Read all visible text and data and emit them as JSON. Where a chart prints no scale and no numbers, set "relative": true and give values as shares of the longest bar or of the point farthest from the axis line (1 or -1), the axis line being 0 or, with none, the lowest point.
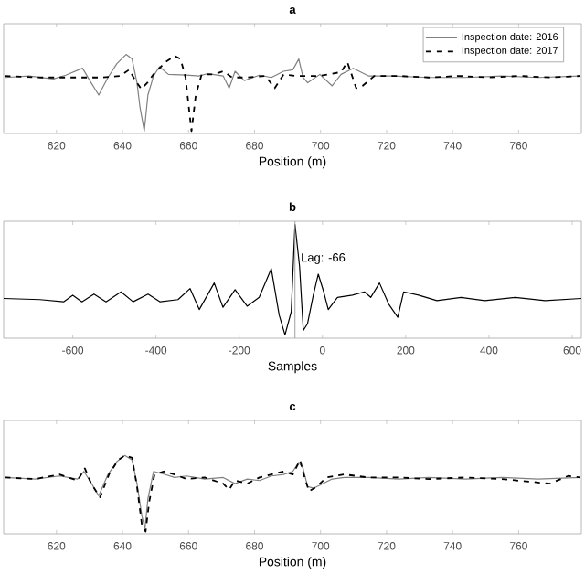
{
  "chart_data": [
    {
      "type": "line",
      "title": "a",
      "xlabel": "Position (m)",
      "relative": true,
      "legend": "top right",
      "xlim": [
        604,
        779
      ],
      "xticks": [
        620,
        640,
        660,
        680,
        700,
        720,
        740,
        760
      ],
      "series": [
        {
          "name": "Inspection date: 2016",
          "color": "#808080",
          "line_style": "solid",
          "x": [
            604.4,
            611.7,
            619.1,
            622.8,
            627.9,
            630.1,
            632.8,
            635.6,
            638.3,
            641.1,
            642.9,
            644.4,
            645.3,
            646.6,
            647.7,
            649.4,
            651.2,
            653.9,
            659.4,
            663.1,
            665.9,
            670.5,
            672.3,
            674.1,
            676.9,
            681.5,
            685.1,
            688.8,
            691.6,
            693.4,
            694.7,
            696.1,
            699.8,
            703.5,
            706.2,
            709.9,
            714.5,
            721.8,
            732.8,
            743.9,
            754.9,
            765.9,
            778.7
          ],
          "values": [
            0.7,
            0.72,
            0.68,
            0.73,
            0.82,
            0.66,
            0.47,
            0.7,
            0.88,
            1.0,
            0.94,
            0.63,
            0.31,
            0.0,
            0.47,
            0.72,
            0.84,
            0.74,
            0.73,
            0.72,
            0.75,
            0.72,
            0.56,
            0.78,
            0.66,
            0.73,
            0.7,
            0.78,
            0.8,
            0.94,
            0.7,
            0.63,
            0.74,
            0.59,
            0.74,
            0.82,
            0.72,
            0.72,
            0.7,
            0.7,
            0.72,
            0.7,
            0.72
          ]
        },
        {
          "name": "Inspection date: 2017",
          "color": "#000000",
          "line_style": "dashed",
          "x": [
            604.4,
            615.4,
            626.4,
            633.8,
            639.3,
            642.0,
            643.9,
            645.7,
            647.5,
            649.4,
            651.2,
            653.0,
            655.8,
            657.6,
            659.1,
            660.0,
            660.9,
            662.2,
            664.0,
            667.7,
            670.5,
            673.2,
            677.8,
            683.3,
            686.1,
            688.8,
            692.5,
            699.8,
            706.2,
            708.1,
            709.4,
            710.8,
            712.7,
            716.3,
            723.7,
            732.8,
            742.0,
            751.2,
            760.4,
            769.5,
            778.7
          ],
          "values": [
            0.72,
            0.7,
            0.7,
            0.7,
            0.72,
            0.8,
            0.66,
            0.55,
            0.63,
            0.74,
            0.82,
            0.9,
            0.98,
            0.94,
            0.7,
            0.35,
            0.0,
            0.47,
            0.74,
            0.74,
            0.78,
            0.7,
            0.7,
            0.72,
            0.56,
            0.74,
            0.72,
            0.72,
            0.77,
            0.9,
            0.74,
            0.56,
            0.59,
            0.72,
            0.72,
            0.7,
            0.72,
            0.7,
            0.72,
            0.7,
            0.72
          ]
        }
      ]
    },
    {
      "type": "line",
      "title": "b",
      "xlabel": "Samples",
      "relative": true,
      "xlim": [
        -766,
        622
      ],
      "xticks": [
        -600,
        -400,
        -200,
        0,
        200,
        400,
        600
      ],
      "ref_lines": [
        {
          "axis": "x",
          "value": -66,
          "label": "Lag: -66",
          "color": "#a0a0a0"
        }
      ],
      "series": [
        {
          "color": "#000000",
          "line_style": "solid",
          "x": [
            -766,
            -679,
            -622,
            -600,
            -578,
            -549,
            -520,
            -484,
            -455,
            -419,
            -390,
            -347,
            -318,
            -296,
            -260,
            -239,
            -210,
            -181,
            -152,
            -123,
            -104,
            -90,
            -75,
            -66,
            -55,
            -46,
            -36,
            -22,
            -10,
            3,
            14,
            36,
            72,
            101,
            116,
            137,
            159,
            181,
            195,
            231,
            275,
            333,
            390,
            463,
            535,
            622
          ],
          "values": [
            0.33,
            0.32,
            0.3,
            0.36,
            0.3,
            0.37,
            0.3,
            0.39,
            0.3,
            0.37,
            0.3,
            0.32,
            0.42,
            0.23,
            0.47,
            0.25,
            0.41,
            0.26,
            0.34,
            0.6,
            0.18,
            0.0,
            0.21,
            1.0,
            0.62,
            0.04,
            0.1,
            0.36,
            0.55,
            0.39,
            0.23,
            0.34,
            0.36,
            0.39,
            0.34,
            0.47,
            0.28,
            0.16,
            0.39,
            0.36,
            0.31,
            0.34,
            0.31,
            0.34,
            0.31,
            0.33
          ]
        }
      ]
    },
    {
      "type": "line",
      "title": "c",
      "xlabel": "Position (m)",
      "relative": true,
      "xlim": [
        604,
        779
      ],
      "xticks": [
        620,
        640,
        660,
        680,
        700,
        720,
        740,
        760
      ],
      "series": [
        {
          "color": "#808080",
          "line_style": "solid",
          "x": [
            604.4,
            613.6,
            620.9,
            626.4,
            628.3,
            630.1,
            632.8,
            635.6,
            638.3,
            640.7,
            642.9,
            644.4,
            645.9,
            646.8,
            647.7,
            649.4,
            652.1,
            655.8,
            659.4,
            664.9,
            670.5,
            674.1,
            677.8,
            681.5,
            685.1,
            688.8,
            691.6,
            693.4,
            694.7,
            696.1,
            698.0,
            699.8,
            703.5,
            707.2,
            714.5,
            723.7,
            732.8,
            743.9,
            754.9,
            765.9,
            778.7
          ],
          "values": [
            0.71,
            0.69,
            0.73,
            0.69,
            0.79,
            0.67,
            0.47,
            0.75,
            0.92,
            1.0,
            0.94,
            0.63,
            0.2,
            0.04,
            0.43,
            0.79,
            0.76,
            0.71,
            0.73,
            0.69,
            0.71,
            0.63,
            0.69,
            0.67,
            0.73,
            0.75,
            0.79,
            0.91,
            0.83,
            0.59,
            0.57,
            0.61,
            0.69,
            0.71,
            0.71,
            0.69,
            0.71,
            0.69,
            0.71,
            0.69,
            0.71
          ]
        },
        {
          "color": "#000000",
          "line_style": "dashed",
          "x": [
            604.4,
            613.6,
            620.9,
            626.4,
            628.6,
            630.5,
            633.2,
            635.9,
            638.7,
            640.7,
            642.9,
            644.4,
            645.9,
            647.0,
            648.1,
            649.7,
            652.5,
            655.8,
            659.4,
            664.9,
            670.5,
            672.3,
            674.1,
            677.8,
            681.5,
            685.1,
            688.8,
            691.6,
            693.8,
            694.9,
            696.5,
            698.9,
            701.7,
            707.2,
            714.5,
            723.7,
            732.8,
            743.9,
            754.9,
            769.5,
            775.0,
            778.7
          ],
          "values": [
            0.71,
            0.69,
            0.75,
            0.67,
            0.83,
            0.63,
            0.45,
            0.75,
            0.94,
            1.0,
            0.97,
            0.59,
            0.08,
            0.0,
            0.39,
            0.75,
            0.79,
            0.75,
            0.69,
            0.71,
            0.63,
            0.55,
            0.67,
            0.63,
            0.71,
            0.75,
            0.79,
            0.75,
            0.94,
            0.75,
            0.53,
            0.59,
            0.71,
            0.75,
            0.71,
            0.71,
            0.69,
            0.71,
            0.69,
            0.63,
            0.73,
            0.71
          ]
        }
      ]
    }
  ]
}
